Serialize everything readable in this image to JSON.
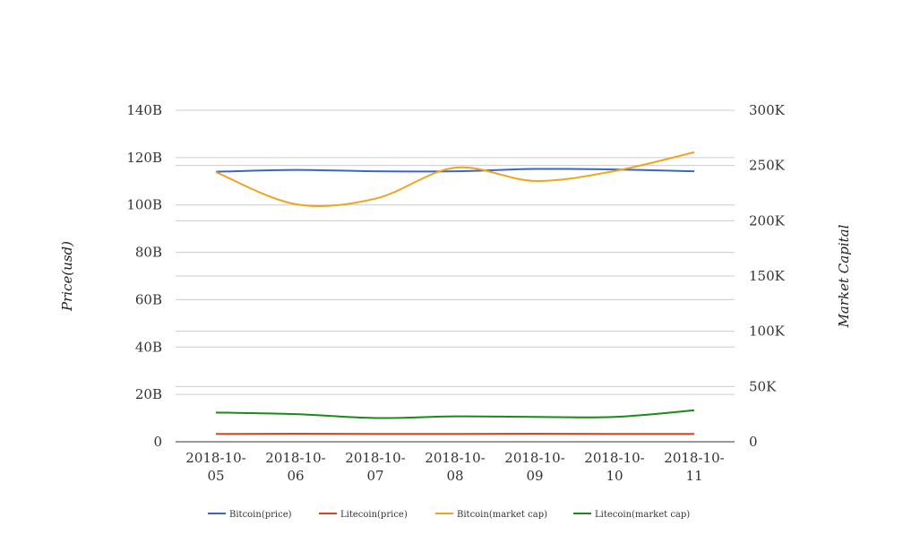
{
  "chart_data": {
    "type": "line",
    "x": [
      "2018-10-05",
      "2018-10-06",
      "2018-10-07",
      "2018-10-08",
      "2018-10-09",
      "2018-10-10",
      "2018-10-11"
    ],
    "x_tick_labels": [
      [
        "2018-10-",
        "05"
      ],
      [
        "2018-10-",
        "06"
      ],
      [
        "2018-10-",
        "07"
      ],
      [
        "2018-10-",
        "08"
      ],
      [
        "2018-10-",
        "09"
      ],
      [
        "2018-10-",
        "10"
      ],
      [
        "2018-10-",
        "11"
      ]
    ],
    "ylabel": "Price(usd)",
    "y2label": "Market Capital",
    "ylim": [
      0,
      140
    ],
    "y2lim": [
      0,
      300
    ],
    "y_ticks": [
      0,
      20,
      40,
      60,
      80,
      100,
      120,
      140
    ],
    "y_tick_labels": [
      "0",
      "20B",
      "40B",
      "60B",
      "80B",
      "100B",
      "120B",
      "140B"
    ],
    "y2_ticks": [
      0,
      50,
      100,
      150,
      200,
      250,
      300
    ],
    "y2_tick_labels": [
      "0",
      "50K",
      "100K",
      "150K",
      "200K",
      "250K",
      "300K"
    ],
    "grid": true,
    "legend_position": "bottom",
    "series": [
      {
        "name": "Bitcoin(price)",
        "axis": "left",
        "color": "#3a66c4",
        "values": [
          114,
          114.8,
          114.2,
          114.2,
          115.2,
          115,
          114.2
        ]
      },
      {
        "name": "Litecoin(price)",
        "axis": "left",
        "color": "#d9441c",
        "values": [
          3.3,
          3.4,
          3.3,
          3.3,
          3.4,
          3.3,
          3.3
        ]
      },
      {
        "name": "Bitcoin(market cap)",
        "axis": "right",
        "color": "#f0a41e",
        "values": [
          244,
          215,
          220,
          248,
          236,
          245,
          262
        ]
      },
      {
        "name": "Litecoin(market cap)",
        "axis": "right",
        "color": "#1a8a1a",
        "values": [
          26.5,
          25,
          21.5,
          23,
          22.5,
          22.5,
          28.5
        ]
      }
    ]
  }
}
